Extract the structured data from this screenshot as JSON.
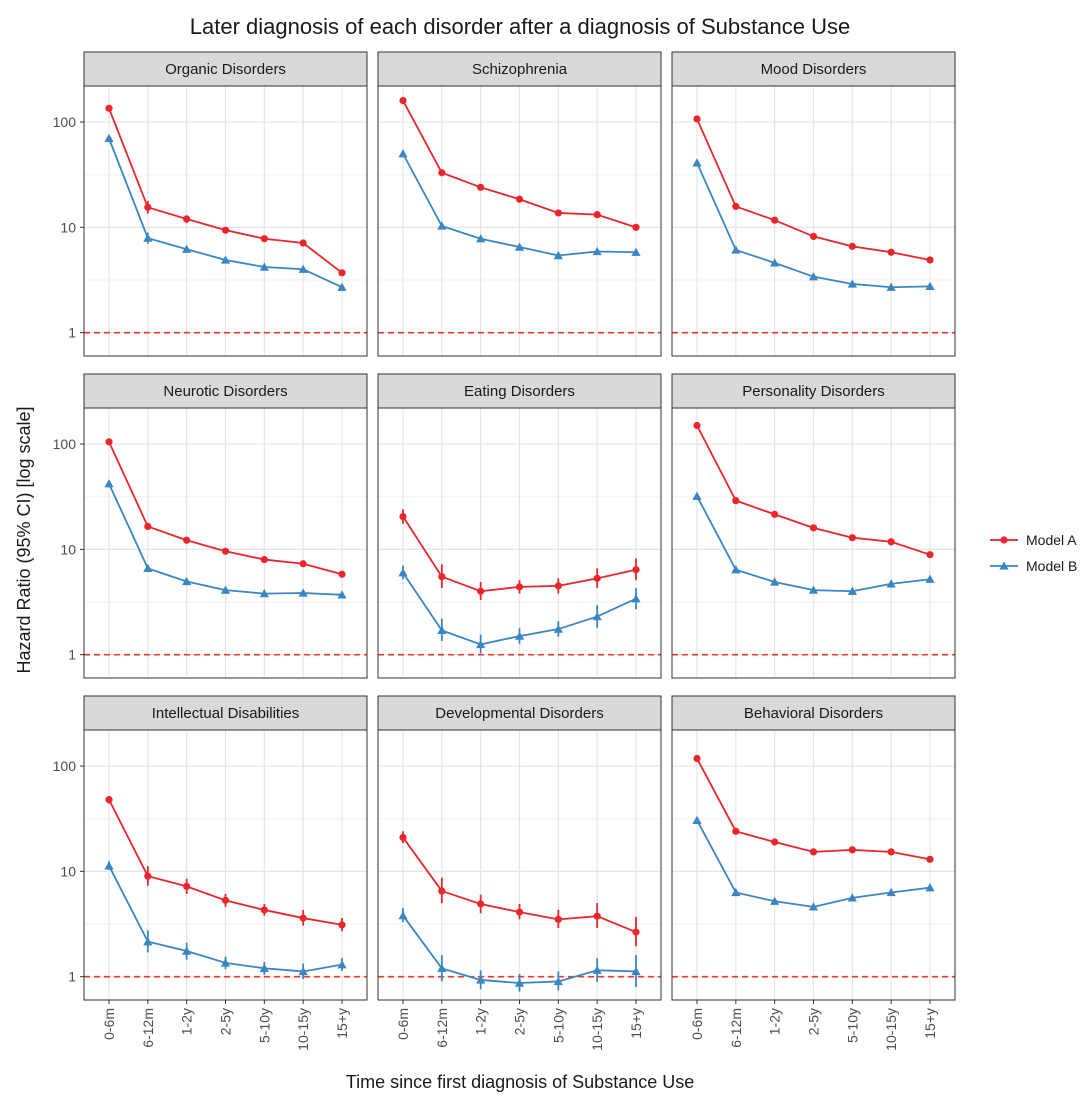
{
  "chart_data": {
    "type": "line",
    "title": "Later diagnosis of each disorder after a diagnosis of Substance Use",
    "xlabel": "Time since first diagnosis of Substance Use",
    "ylabel": "Hazard Ratio (95% CI) [log scale]",
    "y_scale": "log10",
    "ylim": [
      0.6,
      220
    ],
    "y_ticks": [
      1,
      10,
      100
    ],
    "y_tick_labels": [
      "1",
      "10",
      "100"
    ],
    "reference_line": 1,
    "reference_line_color": "#f0362d",
    "categories": [
      "0-6m",
      "6-12m",
      "1-2y",
      "2-5y",
      "5-10y",
      "10-15y",
      "15+y"
    ],
    "grid": true,
    "legend_position": "right",
    "legend": [
      {
        "name": "Model A",
        "color": "#e8262b",
        "marker": "circle"
      },
      {
        "name": "Model B",
        "color": "#3a86c2",
        "marker": "triangle"
      }
    ],
    "panels": [
      {
        "title": "Organic Disorders",
        "series": [
          {
            "name": "Model A",
            "values": [
              135,
              15.5,
              12,
              9.4,
              7.8,
              7.1,
              3.7
            ],
            "ci_low": [
              130,
              13.5,
              11,
              8.8,
              7.4,
              6.7,
              3.5
            ],
            "ci_high": [
              140,
              17.8,
              13,
              10,
              8.2,
              7.5,
              3.9
            ]
          },
          {
            "name": "Model B",
            "values": [
              70,
              7.9,
              6.2,
              4.9,
              4.2,
              4.0,
              2.7
            ],
            "ci_low": [
              66,
              7.0,
              5.8,
              4.6,
              4.0,
              3.8,
              2.6
            ],
            "ci_high": [
              74,
              8.9,
              6.6,
              5.2,
              4.4,
              4.2,
              2.85
            ]
          }
        ]
      },
      {
        "title": "Schizophrenia",
        "series": [
          {
            "name": "Model A",
            "values": [
              160,
              33,
              24,
              18.5,
              13.7,
              13.2,
              10
            ],
            "ci_low": [
              156,
              32,
              23.4,
              18,
              13.3,
              12.7,
              9.6
            ],
            "ci_high": [
              164,
              34,
              24.6,
              19,
              14.1,
              13.7,
              10.4
            ]
          },
          {
            "name": "Model B",
            "values": [
              50,
              10.3,
              7.8,
              6.5,
              5.4,
              5.9,
              5.8
            ],
            "ci_low": [
              48,
              10,
              7.6,
              6.3,
              5.25,
              5.7,
              5.6
            ],
            "ci_high": [
              52,
              10.6,
              8,
              6.7,
              5.55,
              6.1,
              6.0
            ]
          }
        ]
      },
      {
        "title": "Mood Disorders",
        "series": [
          {
            "name": "Model A",
            "values": [
              107,
              15.8,
              11.7,
              8.2,
              6.6,
              5.8,
              4.9
            ],
            "ci_low": [
              104,
              15.4,
              11.4,
              8.0,
              6.45,
              5.65,
              4.75
            ],
            "ci_high": [
              110,
              16.2,
              12.0,
              8.4,
              6.75,
              5.95,
              5.05
            ]
          },
          {
            "name": "Model B",
            "values": [
              41,
              6.1,
              4.6,
              3.4,
              2.9,
              2.7,
              2.75
            ],
            "ci_low": [
              39.5,
              5.95,
              4.5,
              3.32,
              2.84,
              2.64,
              2.68
            ],
            "ci_high": [
              42.5,
              6.25,
              4.7,
              3.48,
              2.96,
              2.76,
              2.82
            ]
          }
        ]
      },
      {
        "title": "Neurotic Disorders",
        "series": [
          {
            "name": "Model A",
            "values": [
              105,
              16.5,
              12.2,
              9.6,
              8.0,
              7.3,
              5.8
            ],
            "ci_low": [
              102,
              16.1,
              11.9,
              9.4,
              7.85,
              7.15,
              5.65
            ],
            "ci_high": [
              108,
              16.9,
              12.5,
              9.8,
              8.15,
              7.45,
              5.95
            ]
          },
          {
            "name": "Model B",
            "values": [
              42,
              6.6,
              4.95,
              4.1,
              3.8,
              3.85,
              3.7
            ],
            "ci_low": [
              40.5,
              6.45,
              4.85,
              4.0,
              3.72,
              3.77,
              3.62
            ],
            "ci_high": [
              43.5,
              6.75,
              5.05,
              4.2,
              3.88,
              3.93,
              3.78
            ]
          }
        ]
      },
      {
        "title": "Eating Disorders",
        "series": [
          {
            "name": "Model A",
            "values": [
              20.5,
              5.5,
              4.0,
              4.4,
              4.5,
              5.3,
              6.4
            ],
            "ci_low": [
              17.5,
              4.3,
              3.3,
              3.8,
              3.8,
              4.3,
              5.1
            ],
            "ci_high": [
              24,
              7.2,
              4.9,
              5.1,
              5.3,
              6.6,
              8.2
            ]
          },
          {
            "name": "Model B",
            "values": [
              6.0,
              1.7,
              1.25,
              1.5,
              1.75,
              2.3,
              3.4
            ],
            "ci_low": [
              5.2,
              1.35,
              1.03,
              1.27,
              1.48,
              1.8,
              2.7
            ],
            "ci_high": [
              7.0,
              2.2,
              1.55,
              1.78,
              2.08,
              2.95,
              4.3
            ]
          }
        ]
      },
      {
        "title": "Personality Disorders",
        "series": [
          {
            "name": "Model A",
            "values": [
              150,
              29,
              21.5,
              16,
              12.9,
              11.8,
              8.9
            ],
            "ci_low": [
              146,
              28.2,
              21,
              15.6,
              12.6,
              11.5,
              8.6
            ],
            "ci_high": [
              154,
              29.8,
              22,
              16.4,
              13.2,
              12.1,
              9.2
            ]
          },
          {
            "name": "Model B",
            "values": [
              32,
              6.4,
              4.9,
              4.1,
              4.0,
              4.7,
              5.2
            ],
            "ci_low": [
              30.8,
              6.2,
              4.75,
              3.97,
              3.87,
              4.55,
              5.02
            ],
            "ci_high": [
              33.2,
              6.6,
              5.05,
              4.23,
              4.13,
              4.85,
              5.38
            ]
          }
        ]
      },
      {
        "title": "Intellectual Disabilities",
        "series": [
          {
            "name": "Model A",
            "values": [
              48,
              9.0,
              7.2,
              5.3,
              4.3,
              3.6,
              3.1
            ],
            "ci_low": [
              44,
              7.3,
              6.1,
              4.6,
              3.8,
              3.05,
              2.7
            ],
            "ci_high": [
              52,
              11.2,
              8.5,
              6.1,
              4.9,
              4.3,
              3.6
            ]
          },
          {
            "name": "Model B",
            "values": [
              11.3,
              2.15,
              1.75,
              1.35,
              1.2,
              1.12,
              1.3
            ],
            "ci_low": [
              10.3,
              1.7,
              1.45,
              1.18,
              1.04,
              0.95,
              1.13
            ],
            "ci_high": [
              12.5,
              2.75,
              2.1,
              1.55,
              1.38,
              1.33,
              1.5
            ]
          }
        ]
      },
      {
        "title": "Developmental Disorders",
        "series": [
          {
            "name": "Model A",
            "values": [
              21,
              6.5,
              4.9,
              4.1,
              3.5,
              3.75,
              2.65
            ],
            "ci_low": [
              18.5,
              5.0,
              4.0,
              3.5,
              2.9,
              2.9,
              1.95
            ],
            "ci_high": [
              24,
              8.7,
              6.0,
              4.9,
              4.3,
              5.0,
              3.7
            ]
          },
          {
            "name": "Model B",
            "values": [
              3.8,
              1.2,
              0.93,
              0.87,
              0.9,
              1.15,
              1.12
            ],
            "ci_low": [
              3.3,
              0.9,
              0.76,
              0.72,
              0.74,
              0.89,
              0.8
            ],
            "ci_high": [
              4.5,
              1.6,
              1.15,
              1.06,
              1.12,
              1.5,
              1.6
            ]
          }
        ]
      },
      {
        "title": "Behavioral Disorders",
        "series": [
          {
            "name": "Model A",
            "values": [
              118,
              24,
              19,
              15.3,
              16,
              15.3,
              13
            ],
            "ci_low": [
              114,
              23.3,
              18.5,
              14.9,
              15.6,
              14.9,
              12.6
            ],
            "ci_high": [
              122,
              24.7,
              19.5,
              15.7,
              16.4,
              15.7,
              13.4
            ]
          },
          {
            "name": "Model B",
            "values": [
              30.5,
              6.3,
              5.2,
              4.6,
              5.6,
              6.3,
              7.0
            ],
            "ci_low": [
              29.3,
              6.1,
              5.05,
              4.46,
              5.44,
              6.12,
              6.8
            ],
            "ci_high": [
              31.7,
              6.5,
              5.35,
              4.74,
              5.76,
              6.48,
              7.2
            ]
          }
        ]
      }
    ]
  }
}
